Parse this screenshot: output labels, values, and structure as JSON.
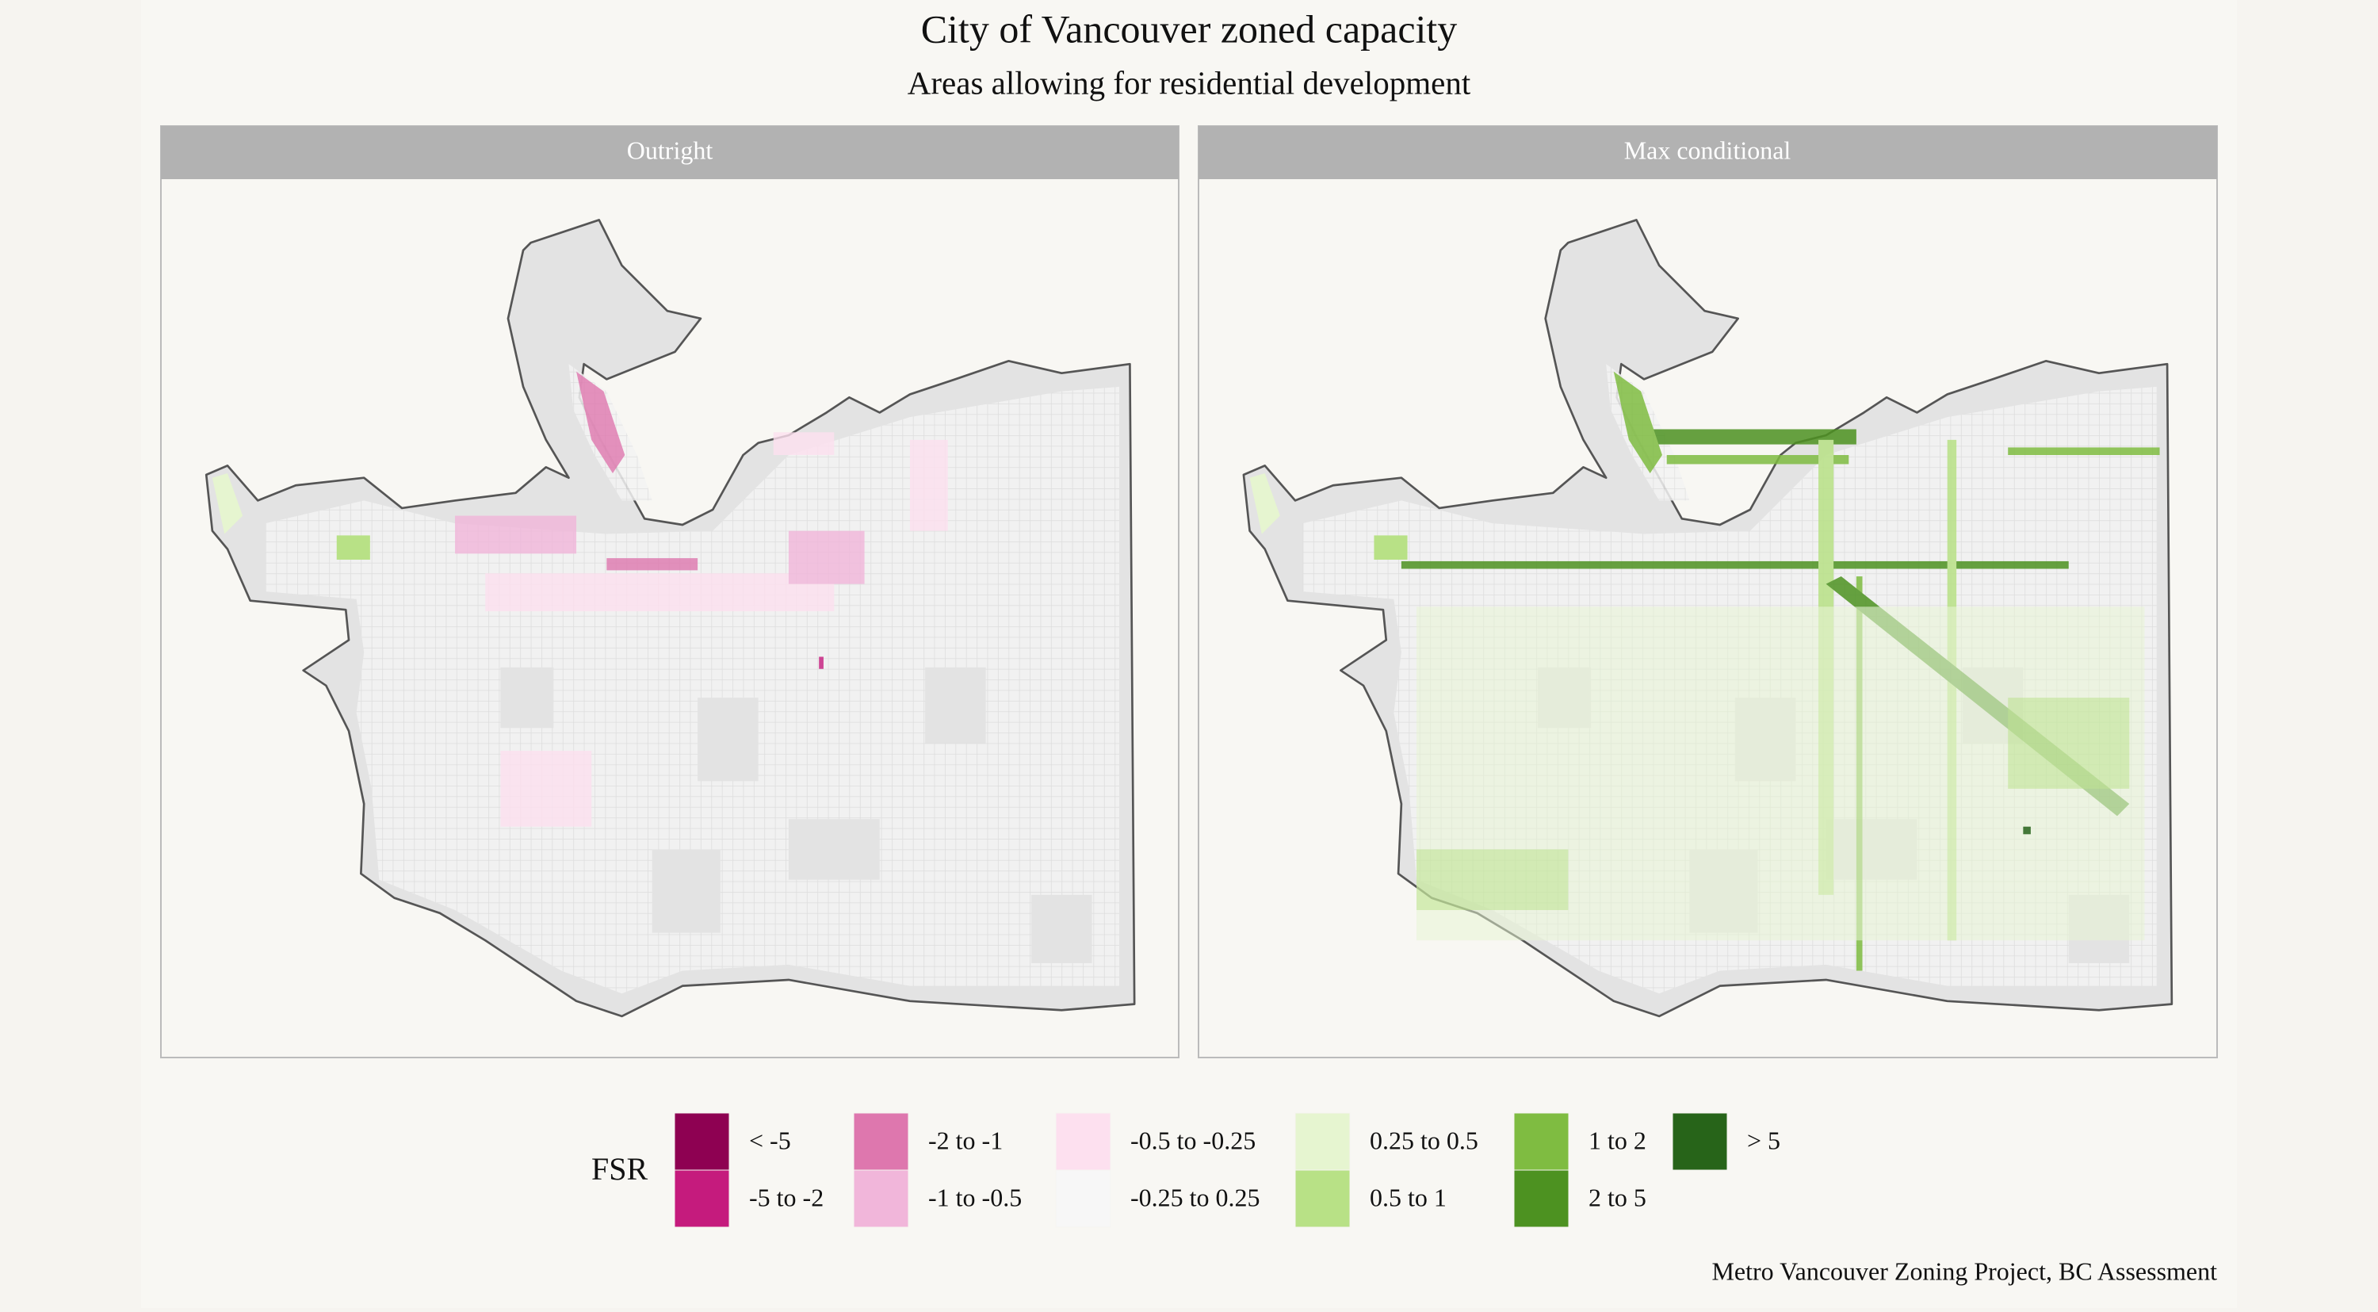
{
  "title": "City of Vancouver zoned capacity",
  "subtitle": "Areas allowing for residential development",
  "panels": [
    "Outright",
    "Max conditional"
  ],
  "legend": {
    "title": "FSR",
    "items": [
      {
        "label": "< -5",
        "color": "#8e0152"
      },
      {
        "label": "-5 to -2",
        "color": "#c51b7d"
      },
      {
        "label": "-2 to -1",
        "color": "#de77ae"
      },
      {
        "label": "-1 to -0.5",
        "color": "#f1b6da"
      },
      {
        "label": "-0.5 to -0.25",
        "color": "#fde0ef"
      },
      {
        "label": "-0.25 to 0.25",
        "color": "#f7f7f7"
      },
      {
        "label": "0.25 to 0.5",
        "color": "#e6f5d0"
      },
      {
        "label": "0.5 to 1",
        "color": "#b8e186"
      },
      {
        "label": "1 to 2",
        "color": "#7fbc41"
      },
      {
        "label": "2 to 5",
        "color": "#4d9221"
      },
      {
        "label": "> 5",
        "color": "#276419"
      }
    ]
  },
  "caption": "Metro Vancouver Zoning Project, BC Assessment"
}
